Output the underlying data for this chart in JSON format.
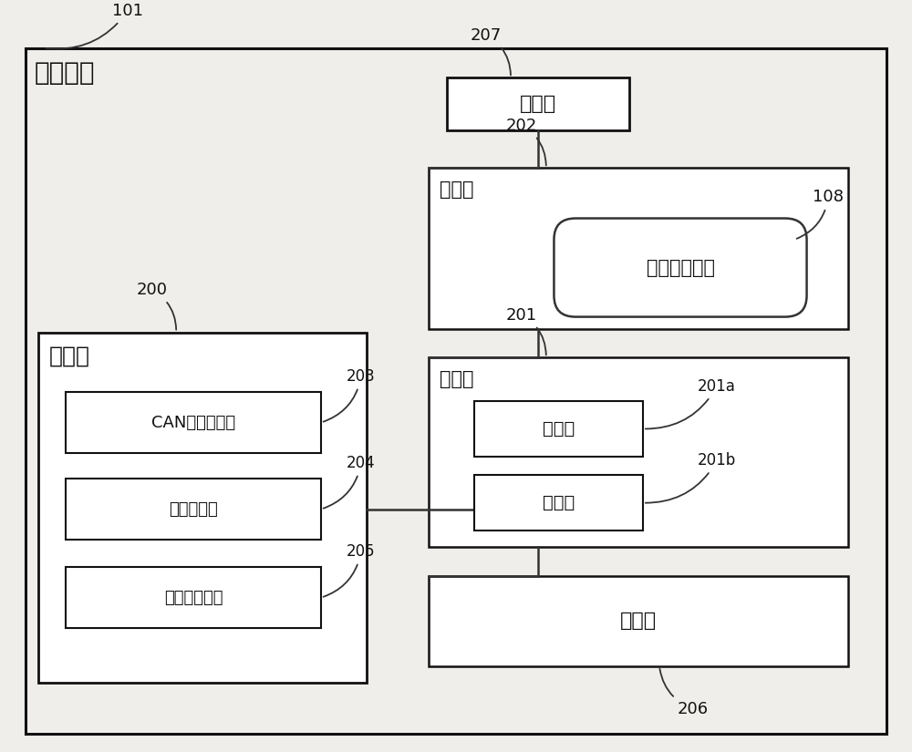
{
  "bg_color": "#f0eeea",
  "outer_label": "评价装置",
  "outer_num": "101",
  "ctrl_label": "控制部",
  "ctrl_num": "207",
  "hold_label": "保持部",
  "hold_num": "202",
  "attack_label": "攻击步骤信息",
  "attack_num": "108",
  "trans_label": "收发部",
  "trans_num": "201",
  "send_label": "发送部",
  "send_num": "201a",
  "recv_label": "接收部",
  "recv_num": "201b",
  "eval_label": "评价部",
  "eval_num": "206",
  "monitor_label": "监视部",
  "monitor_num": "200",
  "can_label": "CAN总线监视部",
  "can_num": "203",
  "sig_label": "信号监视部",
  "sig_num": "204",
  "exec_label": "执行器监视部",
  "exec_num": "205",
  "line_color": "#333333",
  "box_color": "#111111",
  "text_color": "#111111"
}
